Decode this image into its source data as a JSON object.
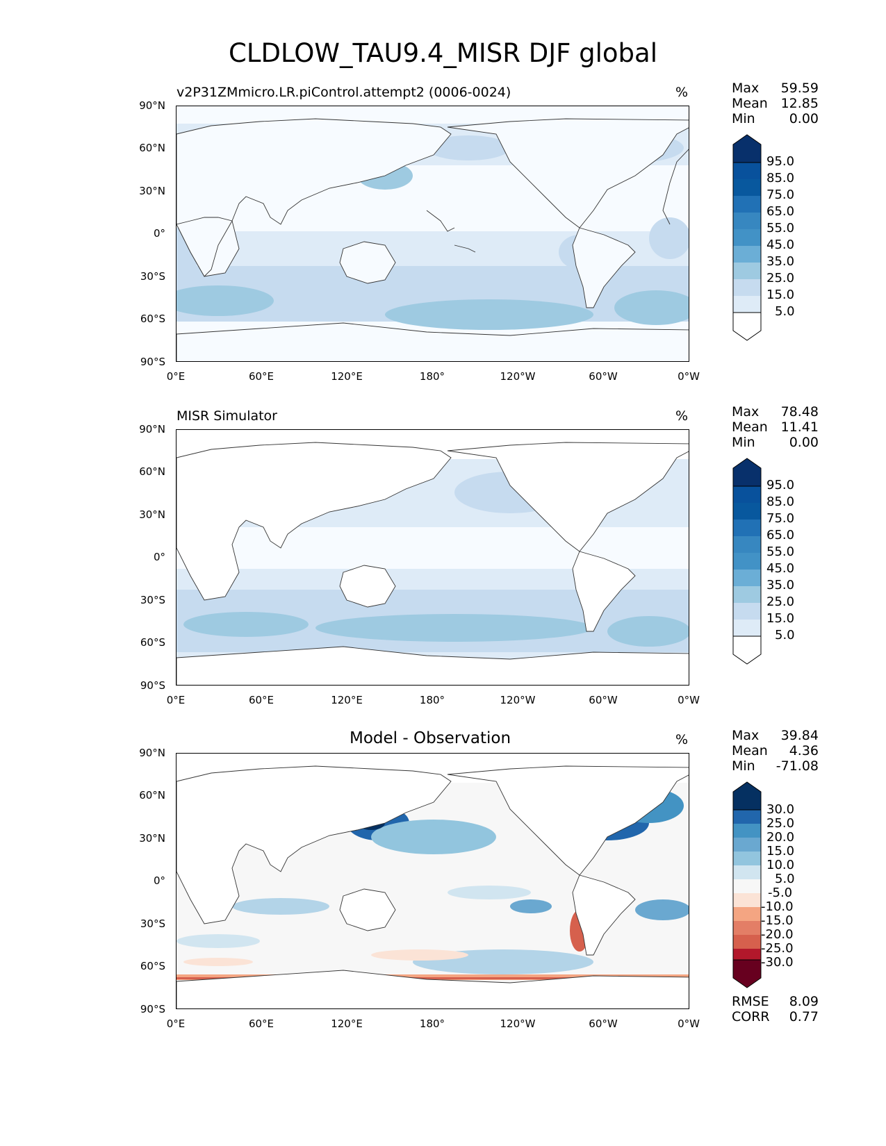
{
  "figure": {
    "title": "CLDLOW_TAU9.4_MISR DJF global"
  },
  "axes": {
    "y_ticks": [
      "90°N",
      "60°N",
      "30°N",
      "0°",
      "30°S",
      "60°S",
      "90°S"
    ],
    "x_ticks": [
      "0°E",
      "60°E",
      "120°E",
      "180°",
      "120°W",
      "60°W",
      "0°W"
    ]
  },
  "colors": {
    "blues": [
      "#f7fbff",
      "#deebf7",
      "#c6dbef",
      "#9ecae1",
      "#6baed6",
      "#4292c6",
      "#2171b5",
      "#08519c",
      "#08306b"
    ],
    "diverging_blue": [
      "#f7f7f7",
      "#e6eef5",
      "#d1e5f0",
      "#b3d4e8",
      "#92c5de",
      "#6aa8d0",
      "#4393c3",
      "#2166ac",
      "#053061"
    ],
    "diverging_red": [
      "#fbe3d6",
      "#f4a582",
      "#e37e66",
      "#d6604d",
      "#b2182b",
      "#67001f"
    ],
    "land": "#ffffff",
    "coast": "#333333"
  },
  "panels": [
    {
      "id": "test",
      "label": "v2P31ZMmicro.LR.piControl.attempt2 (0006-0024)",
      "units": "%",
      "stats": [
        {
          "name": "Max",
          "value": "59.59"
        },
        {
          "name": "Mean",
          "value": "12.85"
        },
        {
          "name": "Min",
          "value": "0.00"
        }
      ],
      "colorbar": {
        "levels": [
          "95.0",
          "85.0",
          "75.0",
          "65.0",
          "55.0",
          "45.0",
          "35.0",
          "25.0",
          "15.0",
          "5.0"
        ],
        "type": "sequential-blues"
      }
    },
    {
      "id": "reference",
      "label": "MISR Simulator",
      "units": "%",
      "stats": [
        {
          "name": "Max",
          "value": "78.48"
        },
        {
          "name": "Mean",
          "value": "11.41"
        },
        {
          "name": "Min",
          "value": "0.00"
        }
      ],
      "colorbar": {
        "levels": [
          "95.0",
          "85.0",
          "75.0",
          "65.0",
          "55.0",
          "45.0",
          "35.0",
          "25.0",
          "15.0",
          "5.0"
        ],
        "type": "sequential-blues"
      }
    },
    {
      "id": "diff",
      "label": "Model - Observation",
      "units": "%",
      "stats": [
        {
          "name": "Max",
          "value": "39.84"
        },
        {
          "name": "Mean",
          "value": "4.36"
        },
        {
          "name": "Min",
          "value": "-71.08"
        }
      ],
      "colorbar": {
        "levels": [
          "30.0",
          "25.0",
          "20.0",
          "15.0",
          "10.0",
          "5.0",
          "-5.0",
          "-10.0",
          "-15.0",
          "-20.0",
          "-25.0",
          "-30.0"
        ],
        "type": "diverging-RdBu"
      },
      "metrics": [
        {
          "name": "RMSE",
          "value": "8.09"
        },
        {
          "name": "CORR",
          "value": "0.77"
        }
      ]
    }
  ]
}
